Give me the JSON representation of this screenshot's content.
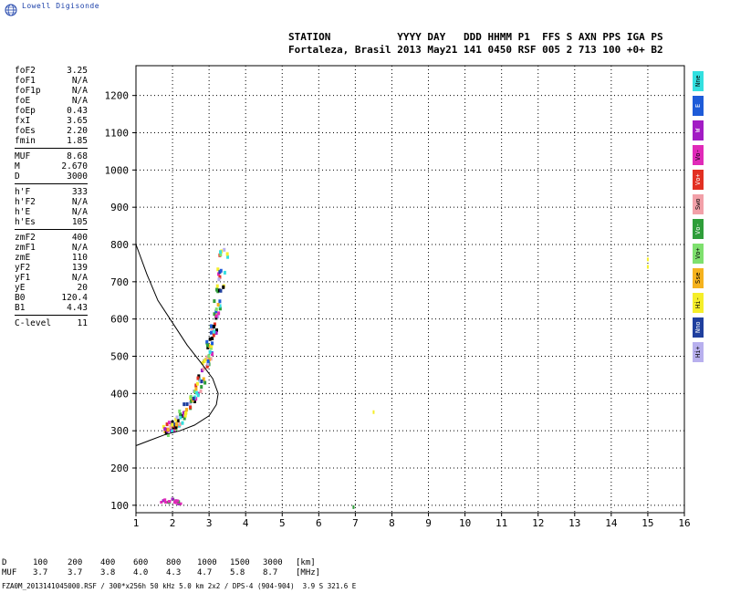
{
  "logo": {
    "text": "Lowell Digisonde",
    "icon": "globe-icon"
  },
  "header": {
    "line1": "STATION           YYYY DAY   DDD HHMM P1  FFS S AXN PPS IGA PS",
    "line2": "Fortaleza, Brasil 2013 May21 141 0450 RSF 005 2 713 100 +0+ B2"
  },
  "params": [
    {
      "k": "foF2",
      "v": "3.25"
    },
    {
      "k": "foF1",
      "v": "N/A"
    },
    {
      "k": "foF1p",
      "v": "N/A"
    },
    {
      "k": "foE",
      "v": "N/A"
    },
    {
      "k": "foEp",
      "v": "0.43"
    },
    {
      "k": "fxI",
      "v": "3.65"
    },
    {
      "k": "foEs",
      "v": "2.20"
    },
    {
      "k": "fmin",
      "v": "1.85"
    },
    {
      "sep": true
    },
    {
      "k": "MUF",
      "v": "8.68"
    },
    {
      "k": "M",
      "v": "2.670"
    },
    {
      "k": "D",
      "v": "3000"
    },
    {
      "sep": true
    },
    {
      "k": "h'F",
      "v": "333"
    },
    {
      "k": "h'F2",
      "v": "N/A"
    },
    {
      "k": "h'E",
      "v": "N/A"
    },
    {
      "k": "h'Es",
      "v": "105"
    },
    {
      "sep": true
    },
    {
      "k": "zmF2",
      "v": "400"
    },
    {
      "k": "zmF1",
      "v": "N/A"
    },
    {
      "k": "zmE",
      "v": "110"
    },
    {
      "k": "yF2",
      "v": "139"
    },
    {
      "k": "yF1",
      "v": "N/A"
    },
    {
      "k": "yE",
      "v": "20"
    },
    {
      "k": "B0",
      "v": "120.4"
    },
    {
      "k": "B1",
      "v": "4.43"
    },
    {
      "sep": true
    },
    {
      "k": "C-level",
      "v": "11"
    }
  ],
  "legend": [
    {
      "label": "Nne",
      "color": "#33e0e0"
    },
    {
      "label": "E",
      "color": "#1e5bd8"
    },
    {
      "label": "W",
      "color": "#a21cc4"
    },
    {
      "label": "Vo-",
      "color": "#e02ab8"
    },
    {
      "label": "Vo+",
      "color": "#e23022"
    },
    {
      "label": "Swo",
      "color": "#f2a0a8"
    },
    {
      "label": "Vo-",
      "color": "#2f9e3a"
    },
    {
      "label": "Vo+",
      "color": "#7ee06e"
    },
    {
      "label": "Sse",
      "color": "#f5b21e"
    },
    {
      "label": "Hi-",
      "color": "#f5ee2a"
    },
    {
      "label": "Nno",
      "color": "#1f3f9e"
    },
    {
      "label": "Hi+",
      "color": "#b8b0ee"
    }
  ],
  "chart_data": {
    "type": "scatter",
    "xlim": [
      1,
      16
    ],
    "ylim": [
      80,
      1280
    ],
    "x_ticks": [
      "1",
      "2",
      "3",
      "4",
      "5",
      "6",
      "7",
      "8",
      "9",
      "10",
      "11",
      "12",
      "13",
      "14",
      "15",
      "16"
    ],
    "y_ticks": [
      "100",
      "200",
      "300",
      "400",
      "500",
      "600",
      "700",
      "800",
      "900",
      "1000",
      "1100",
      "1200"
    ],
    "grid": true,
    "profile_curve": [
      [
        1.0,
        800
      ],
      [
        1.3,
        720
      ],
      [
        1.6,
        650
      ],
      [
        2.0,
        590
      ],
      [
        2.4,
        530
      ],
      [
        2.8,
        480
      ],
      [
        3.1,
        440
      ],
      [
        3.25,
        400
      ],
      [
        3.2,
        370
      ],
      [
        3.0,
        340
      ],
      [
        2.6,
        315
      ],
      [
        2.2,
        300
      ],
      [
        1.8,
        290
      ],
      [
        1.4,
        275
      ],
      [
        1.0,
        260
      ]
    ],
    "echo_trace": [
      [
        1.85,
        300
      ],
      [
        1.95,
        305
      ],
      [
        2.0,
        310
      ],
      [
        2.05,
        315
      ],
      [
        2.1,
        320
      ],
      [
        2.2,
        330
      ],
      [
        2.3,
        345
      ],
      [
        2.4,
        360
      ],
      [
        2.5,
        375
      ],
      [
        2.6,
        395
      ],
      [
        2.7,
        415
      ],
      [
        2.8,
        440
      ],
      [
        2.9,
        470
      ],
      [
        2.95,
        490
      ],
      [
        3.0,
        510
      ],
      [
        3.05,
        535
      ],
      [
        3.1,
        560
      ],
      [
        3.15,
        585
      ],
      [
        3.2,
        610
      ],
      [
        3.25,
        640
      ],
      [
        3.3,
        680
      ],
      [
        3.35,
        720
      ],
      [
        3.4,
        780
      ]
    ],
    "es_trace": [
      [
        1.75,
        110
      ],
      [
        1.85,
        110
      ],
      [
        1.95,
        112
      ],
      [
        2.05,
        110
      ],
      [
        2.15,
        108
      ],
      [
        2.2,
        110
      ]
    ],
    "stray_points": [
      [
        7.5,
        350
      ],
      [
        15.0,
        740
      ],
      [
        15.0,
        760
      ],
      [
        6.95,
        95
      ]
    ]
  },
  "muf_table": {
    "d_label": "D",
    "d_values": [
      "100",
      "200",
      "400",
      "600",
      "800",
      "1000",
      "1500",
      "3000"
    ],
    "d_unit": "[km]",
    "muf_label": "MUF",
    "muf_values": [
      "3.7",
      "3.7",
      "3.8",
      "4.0",
      "4.3",
      "4.7",
      "5.8",
      "8.7"
    ],
    "muf_unit": "[MHz]"
  },
  "footer": "FZA0M_2013141045000.RSF / 300*x256h 50 kHz 5.0 km 2x2 / DPS-4 (904-904)  3.9 S 321.6 E"
}
